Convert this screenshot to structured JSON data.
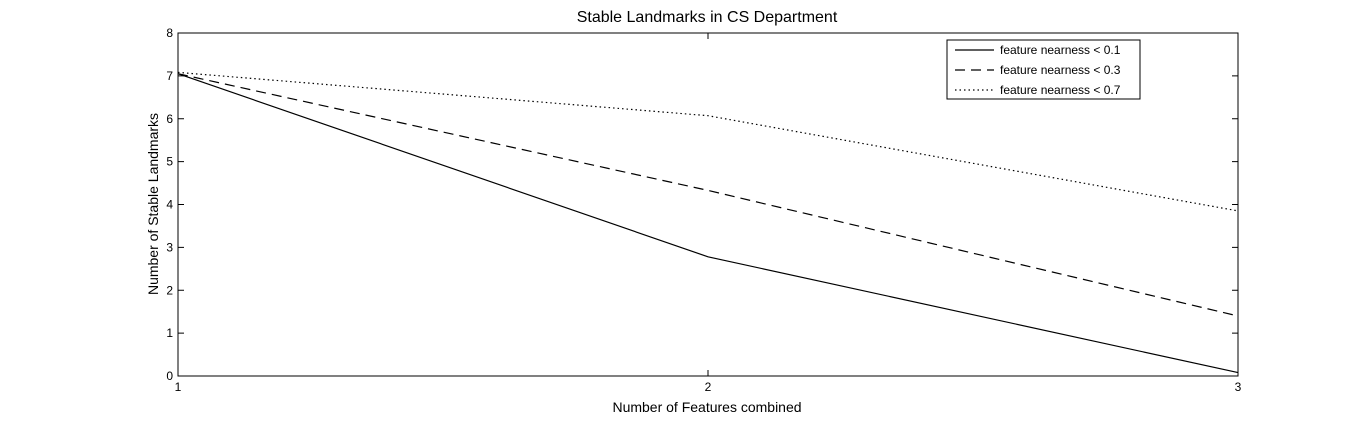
{
  "chart_data": {
    "type": "line",
    "title": "Stable Landmarks in CS Department",
    "xlabel": "Number of Features combined",
    "ylabel": "Number of Stable Landmarks",
    "x": [
      1,
      2,
      3
    ],
    "xlim": [
      1,
      3
    ],
    "ylim": [
      0,
      8
    ],
    "xticks": [
      "1",
      "2",
      "3"
    ],
    "yticks": [
      "0",
      "1",
      "2",
      "3",
      "4",
      "5",
      "6",
      "7",
      "8"
    ],
    "grid": false,
    "legend_position": "top-right",
    "series": [
      {
        "name": "feature nearness < 0.1",
        "values": [
          7.05,
          2.78,
          0.08
        ],
        "style": "solid",
        "color": "#000000"
      },
      {
        "name": "feature nearness < 0.3",
        "values": [
          7.05,
          4.33,
          1.4
        ],
        "style": "dashed",
        "color": "#000000"
      },
      {
        "name": "feature nearness < 0.7",
        "values": [
          7.08,
          6.07,
          3.85
        ],
        "style": "dotted",
        "color": "#000000"
      }
    ]
  }
}
